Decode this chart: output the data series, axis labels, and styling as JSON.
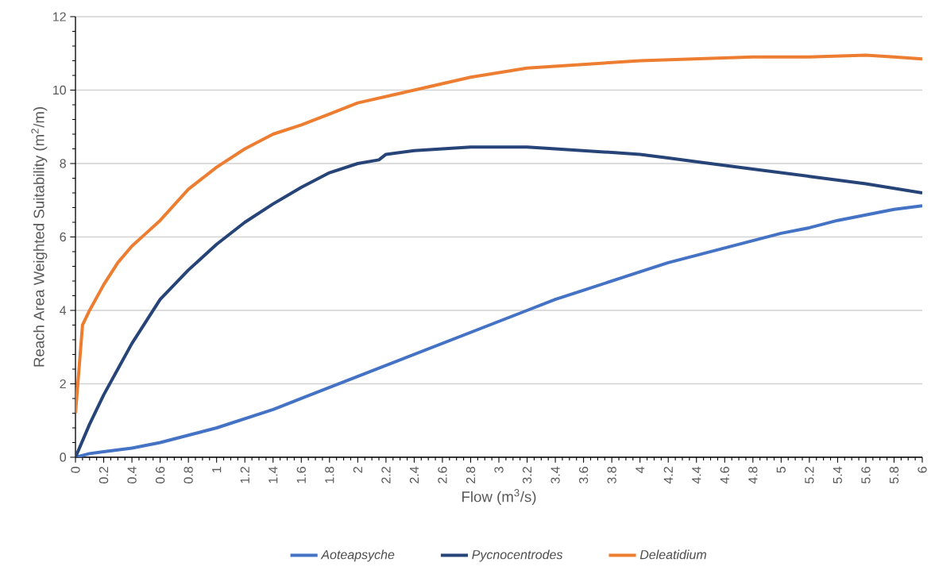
{
  "chart_data": {
    "type": "line",
    "xlabel": "Flow (m$^{3}$/s)",
    "ylabel": "Reach Area Weighted Suitability (m$^{2}$/m)",
    "xlim": [
      0,
      6
    ],
    "ylim": [
      0,
      12
    ],
    "xticks": [
      0,
      0.2,
      0.4,
      0.6,
      0.8,
      1,
      1.2,
      1.4,
      1.6,
      1.8,
      2,
      2.2,
      2.4,
      2.6,
      2.8,
      3,
      3.2,
      3.4,
      3.6,
      3.8,
      4,
      4.2,
      4.4,
      4.6,
      4.8,
      5,
      5.2,
      5.4,
      5.6,
      5.8,
      6
    ],
    "yticks": [
      0,
      2,
      4,
      6,
      8,
      10,
      12
    ],
    "grid": "y",
    "legend": "bottom",
    "marker": "none",
    "line_style": "solid",
    "series": [
      {
        "name": "Aoteapsyche",
        "color": "#4472c4",
        "x": [
          0,
          0.1,
          0.2,
          0.4,
          0.6,
          0.8,
          1,
          1.2,
          1.4,
          1.6,
          1.8,
          2,
          2.2,
          2.4,
          2.6,
          2.8,
          3,
          3.2,
          3.4,
          3.6,
          3.8,
          4,
          4.2,
          4.4,
          4.6,
          4.8,
          5,
          5.2,
          5.4,
          5.6,
          5.8,
          6
        ],
        "values": [
          0,
          0.1,
          0.15,
          0.25,
          0.4,
          0.6,
          0.8,
          1.05,
          1.3,
          1.6,
          1.9,
          2.2,
          2.5,
          2.8,
          3.1,
          3.4,
          3.7,
          4.0,
          4.3,
          4.55,
          4.8,
          5.05,
          5.3,
          5.5,
          5.7,
          5.9,
          6.1,
          6.25,
          6.45,
          6.6,
          6.75,
          6.85
        ]
      },
      {
        "name": "Pycnocentrodes",
        "color": "#264478",
        "x": [
          0,
          0.1,
          0.2,
          0.3,
          0.4,
          0.5,
          0.6,
          0.8,
          1,
          1.2,
          1.4,
          1.6,
          1.8,
          2,
          2.15,
          2.2,
          2.4,
          2.6,
          2.8,
          3.2,
          3.4,
          3.8,
          4,
          4.2,
          4.4,
          4.8,
          5.2,
          5.6,
          6
        ],
        "values": [
          0,
          0.9,
          1.7,
          2.4,
          3.1,
          3.7,
          4.3,
          5.1,
          5.8,
          6.4,
          6.9,
          7.35,
          7.75,
          8.0,
          8.1,
          8.25,
          8.35,
          8.4,
          8.45,
          8.45,
          8.4,
          8.3,
          8.25,
          8.15,
          8.05,
          7.85,
          7.65,
          7.45,
          7.2
        ]
      },
      {
        "name": "Deleatidium",
        "color": "#ed7d31",
        "x": [
          0,
          0.05,
          0.1,
          0.2,
          0.3,
          0.4,
          0.5,
          0.6,
          0.8,
          1,
          1.2,
          1.4,
          1.6,
          1.8,
          2,
          2.4,
          2.8,
          3.2,
          3.6,
          4,
          4.4,
          4.8,
          5.2,
          5.6,
          5.8,
          6
        ],
        "values": [
          1.2,
          3.6,
          4.0,
          4.7,
          5.3,
          5.75,
          6.1,
          6.45,
          7.3,
          7.9,
          8.4,
          8.8,
          9.05,
          9.35,
          9.65,
          10.0,
          10.35,
          10.6,
          10.7,
          10.8,
          10.85,
          10.9,
          10.9,
          10.95,
          10.9,
          10.85
        ]
      }
    ]
  }
}
